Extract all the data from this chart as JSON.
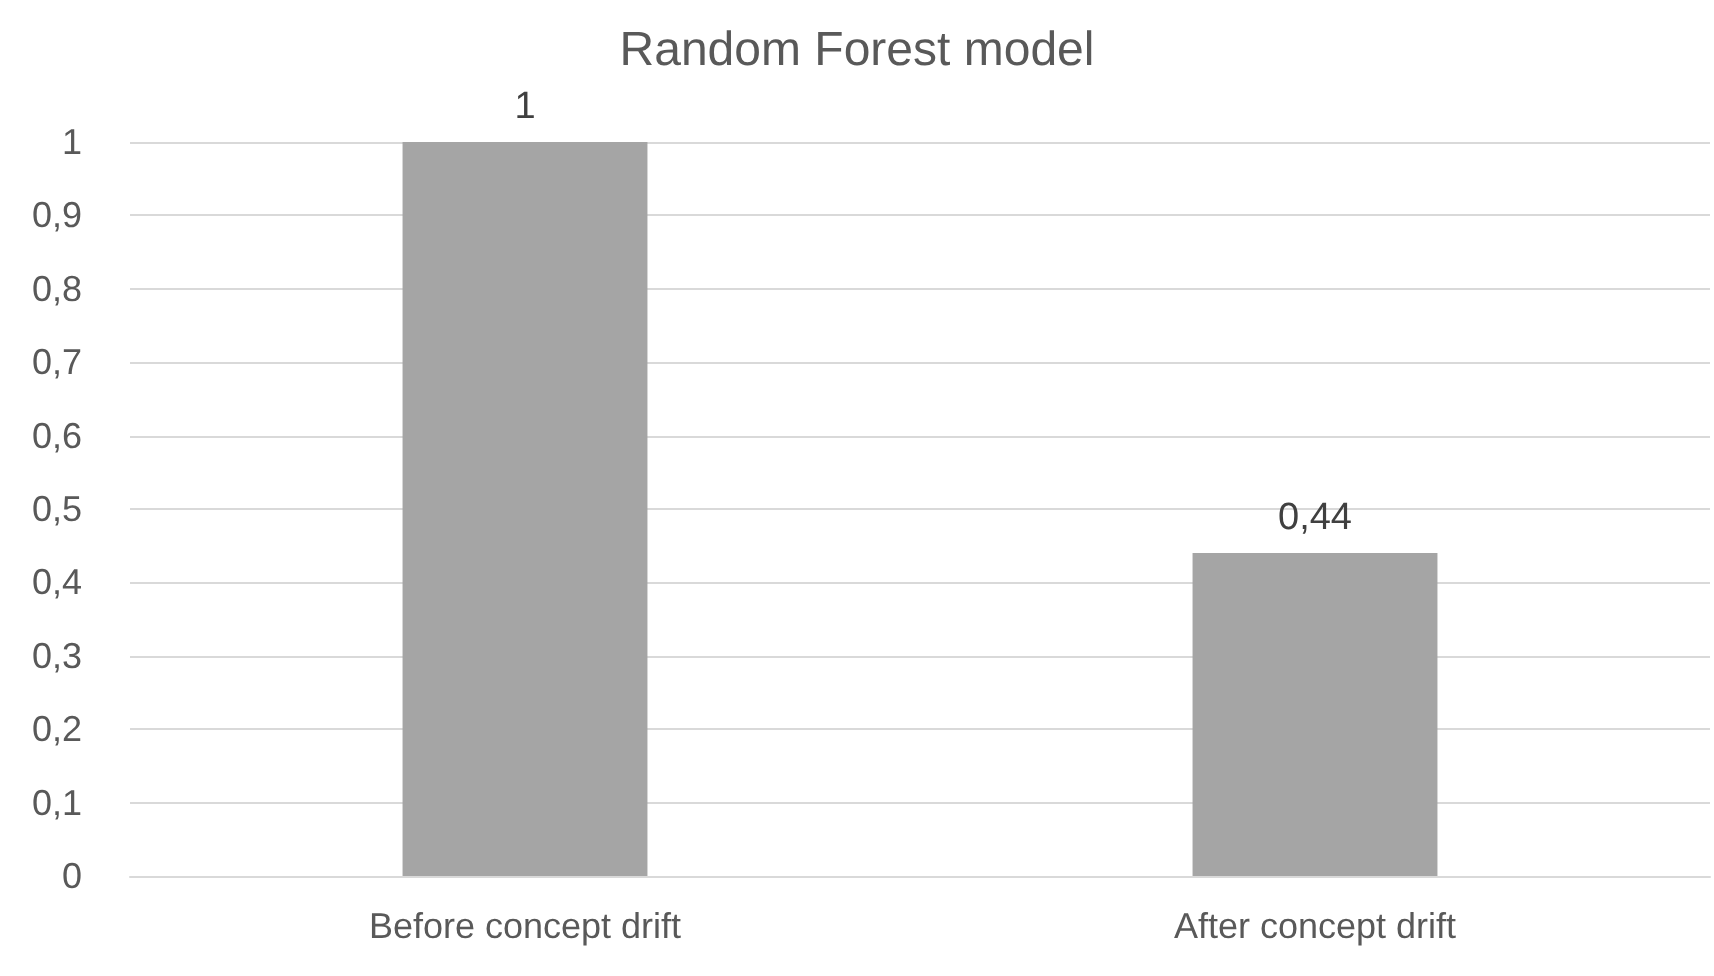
{
  "chart_data": {
    "type": "bar",
    "title": "Random Forest model",
    "categories": [
      "Before concept drift",
      "After concept drift"
    ],
    "series": [
      {
        "color": "#a5a5a5",
        "values": [
          1,
          0.44
        ],
        "value_labels": [
          "1",
          "0,44"
        ]
      }
    ],
    "ylim": [
      0,
      1
    ],
    "yticks": [
      {
        "value": 0,
        "label": "0"
      },
      {
        "value": 0.1,
        "label": "0,1"
      },
      {
        "value": 0.2,
        "label": "0,2"
      },
      {
        "value": 0.3,
        "label": "0,3"
      },
      {
        "value": 0.4,
        "label": "0,4"
      },
      {
        "value": 0.5,
        "label": "0,5"
      },
      {
        "value": 0.6,
        "label": "0,6"
      },
      {
        "value": 0.7,
        "label": "0,7"
      },
      {
        "value": 0.8,
        "label": "0,8"
      },
      {
        "value": 0.9,
        "label": "0,9"
      },
      {
        "value": 1,
        "label": "1"
      }
    ],
    "grid": "y"
  }
}
